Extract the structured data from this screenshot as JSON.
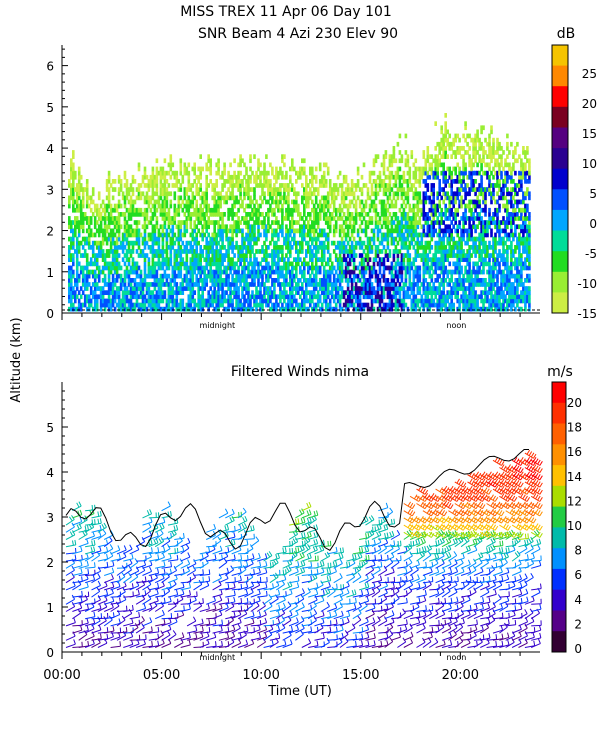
{
  "chart_data": [
    {
      "type": "heatmap",
      "title": "MISS TREX   11 Apr 06 Day 101",
      "subtitle": "SNR Beam 4 Azi 230 Elev 90",
      "ylabel": "Altitude (km)",
      "ylim": [
        0,
        6.5
      ],
      "yticks": [
        0,
        1,
        2,
        3,
        4,
        5,
        6
      ],
      "markers": [
        {
          "label": "midnight",
          "hour": 7.8
        },
        {
          "label": "noon",
          "hour": 19.8
        }
      ],
      "colorbar": {
        "unit": "dB",
        "ticks": [
          "25",
          "20",
          "15",
          "10",
          "5",
          "0",
          "-5",
          "-10",
          "-15"
        ],
        "colors": [
          "#f5c400",
          "#ff8800",
          "#ff0000",
          "#7a0020",
          "#550080",
          "#2a0090",
          "#0000cc",
          "#0050ff",
          "#00a6ff",
          "#00dd99",
          "#22dd22",
          "#99ee33",
          "#ccee44"
        ]
      },
      "signal_top_km": [
        {
          "hour": 0.3,
          "top": 3.8
        },
        {
          "hour": 1.5,
          "top": 3.0
        },
        {
          "hour": 3,
          "top": 3.2
        },
        {
          "hour": 5,
          "top": 3.5
        },
        {
          "hour": 7,
          "top": 3.5
        },
        {
          "hour": 10,
          "top": 3.7
        },
        {
          "hour": 13,
          "top": 3.4
        },
        {
          "hour": 15,
          "top": 3.3
        },
        {
          "hour": 17,
          "top": 4.2
        },
        {
          "hour": 18,
          "top": 3.6
        },
        {
          "hour": 19,
          "top": 4.6
        },
        {
          "hour": 20,
          "top": 4.3
        },
        {
          "hour": 21,
          "top": 4.3
        },
        {
          "hour": 22,
          "top": 4.1
        },
        {
          "hour": 23.4,
          "top": 4.0
        }
      ]
    },
    {
      "type": "scatter",
      "title": "Filtered Winds nima",
      "xlabel": "Time (UT)",
      "ylabel": "Altitude (km)",
      "xlim": [
        0,
        24
      ],
      "ylim": [
        0,
        6
      ],
      "xticks": [
        "00:00",
        "05:00",
        "10:00",
        "15:00",
        "20:00"
      ],
      "xtick_hours": [
        0,
        5,
        10,
        15,
        20
      ],
      "yticks": [
        0,
        1,
        2,
        3,
        4,
        5
      ],
      "markers": [
        {
          "label": "midnight",
          "hour": 7.8
        },
        {
          "label": "noon",
          "hour": 19.8
        }
      ],
      "colorbar": {
        "unit": "m/s",
        "ticks": [
          "20",
          "18",
          "16",
          "14",
          "12",
          "10",
          "8",
          "6",
          "4",
          "2",
          "0"
        ],
        "colors": [
          "#ff0000",
          "#ff3000",
          "#ff6000",
          "#ff9000",
          "#ffc000",
          "#aadd00",
          "#22cc44",
          "#00bbaa",
          "#0090ff",
          "#0030ff",
          "#3300cc",
          "#550088",
          "#330033"
        ]
      },
      "speed_by_altitude_late": [
        {
          "alt": 4.2,
          "speed": 19
        },
        {
          "alt": 3.5,
          "speed": 18
        },
        {
          "alt": 3.0,
          "speed": 15
        },
        {
          "alt": 2.6,
          "speed": 11
        },
        {
          "alt": 2.2,
          "speed": 8
        },
        {
          "alt": 1.5,
          "speed": 5
        },
        {
          "alt": 0.5,
          "speed": 3
        }
      ]
    }
  ]
}
